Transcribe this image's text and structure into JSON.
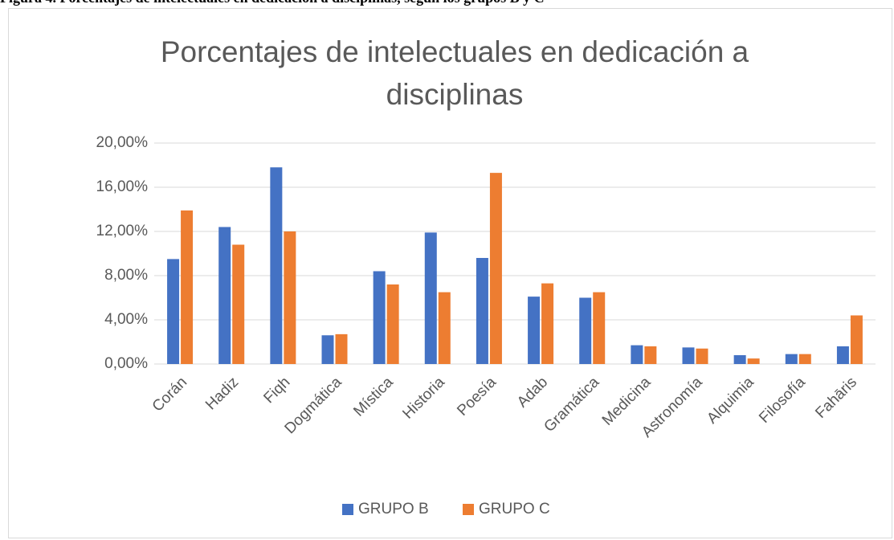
{
  "caption": "Figura 4. Porcentajes de intelectuales en dedicación a disciplinas, según los grupos B y C",
  "chart_data": {
    "type": "bar",
    "title": "Porcentajes de intelectuales en dedicación a disciplinas",
    "categories": [
      "Corán",
      "Hadiz",
      "Fiqh",
      "Dogmática",
      "Mística",
      "Historia",
      "Poesía",
      "Adab",
      "Gramática",
      "Medicina",
      "Astronomía",
      "Alquimia",
      "Filosofía",
      "Fahāris"
    ],
    "series": [
      {
        "name": "GRUPO B",
        "color": "#4472c4",
        "values": [
          9.5,
          12.4,
          17.8,
          2.6,
          8.4,
          11.9,
          9.6,
          6.1,
          6.0,
          1.7,
          1.5,
          0.8,
          0.9,
          1.6
        ]
      },
      {
        "name": "GRUPO C",
        "color": "#ed7d31",
        "values": [
          13.9,
          10.8,
          12.0,
          2.7,
          7.2,
          6.5,
          17.3,
          7.3,
          6.5,
          1.6,
          1.4,
          0.5,
          0.9,
          4.4
        ]
      }
    ],
    "ylim": [
      0,
      20
    ],
    "yticks": [
      {
        "value": 0,
        "label": "0,00%"
      },
      {
        "value": 4,
        "label": "4,00%"
      },
      {
        "value": 8,
        "label": "8,00%"
      },
      {
        "value": 12,
        "label": "12,00%"
      },
      {
        "value": 16,
        "label": "16,00%"
      },
      {
        "value": 20,
        "label": "20,00%"
      }
    ],
    "grid": true,
    "legend": "bottom"
  }
}
